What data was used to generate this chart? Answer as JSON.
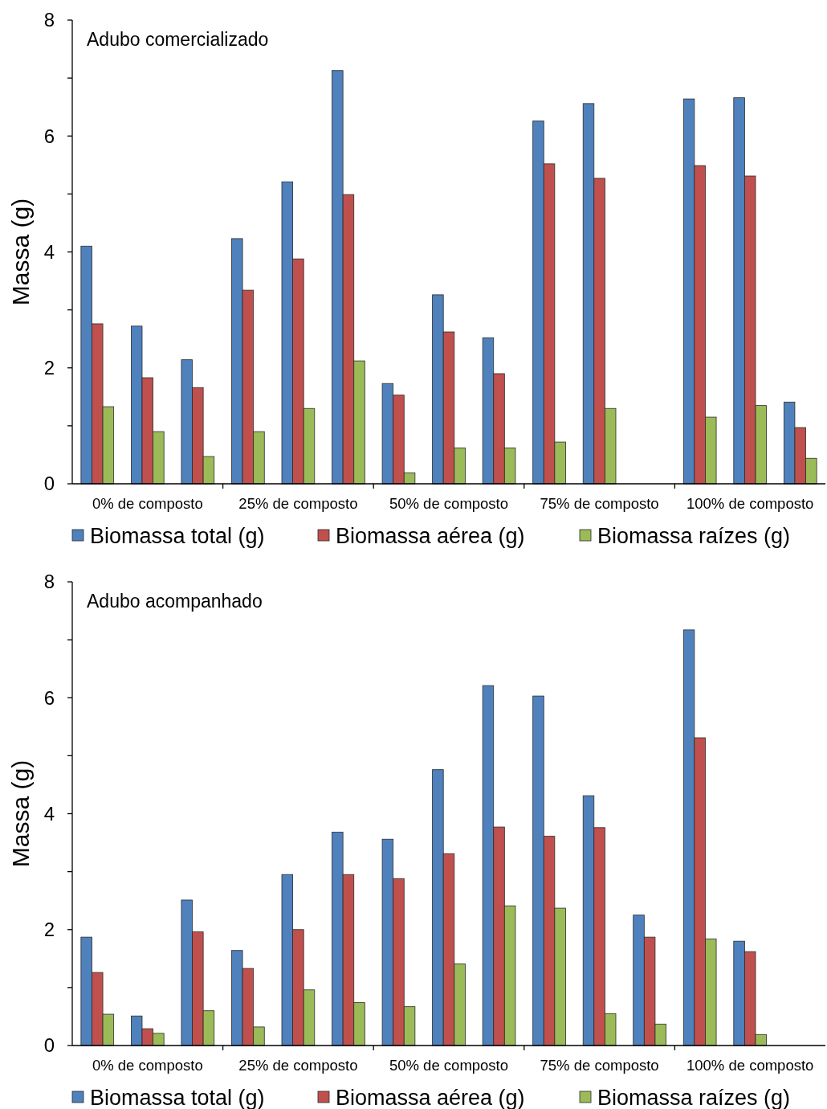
{
  "chart_data": [
    {
      "type": "bar",
      "title": "Adubo comercializado",
      "ylabel": "Massa (g)",
      "categories": [
        null,
        "0% de composto",
        null,
        null,
        "25% de composto",
        null,
        null,
        "50% de composto",
        null,
        null,
        "75% de composto",
        null,
        null,
        "100% de composto",
        null
      ],
      "ylim": [
        0,
        8
      ],
      "yticks": [
        0,
        {
          "value": 1,
          "label": null
        },
        2,
        {
          "value": 3,
          "label": null
        },
        4,
        {
          "value": 5,
          "label": null
        },
        6,
        {
          "value": 7,
          "label": null
        },
        8
      ],
      "legend": "bottom",
      "grid": false,
      "series": [
        {
          "name": "Biomassa total (g)",
          "color": "#4f81bd",
          "values": [
            4.1,
            2.72,
            2.14,
            4.23,
            5.21,
            7.13,
            1.73,
            3.26,
            2.52,
            6.26,
            6.56,
            null,
            6.64,
            6.66,
            1.41
          ]
        },
        {
          "name": "Biomassa aérea (g)",
          "color": "#c0504d",
          "values": [
            2.76,
            1.83,
            1.66,
            3.34,
            3.88,
            4.99,
            1.53,
            2.62,
            1.9,
            5.52,
            5.27,
            null,
            5.49,
            5.31,
            0.97
          ]
        },
        {
          "name": "Biomassa raízes (g)",
          "color": "#9bbb59",
          "values": [
            1.33,
            0.9,
            0.47,
            0.9,
            1.3,
            2.12,
            0.19,
            0.62,
            0.62,
            0.72,
            1.3,
            null,
            1.15,
            1.35,
            0.44
          ]
        }
      ]
    },
    {
      "type": "bar",
      "title": "Adubo acompanhado",
      "ylabel": "Massa (g)",
      "categories": [
        null,
        "0% de composto",
        null,
        null,
        "25% de composto",
        null,
        null,
        "50% de composto",
        null,
        null,
        "75% de composto",
        null,
        null,
        "100% de composto",
        null
      ],
      "ylim": [
        0,
        8
      ],
      "yticks": [
        0,
        {
          "value": 1,
          "label": null
        },
        2,
        {
          "value": 3,
          "label": null
        },
        4,
        {
          "value": 5,
          "label": null
        },
        6,
        {
          "value": 7,
          "label": null
        },
        8
      ],
      "legend": "bottom",
      "grid": false,
      "series": [
        {
          "name": "Biomassa total (g)",
          "color": "#4f81bd",
          "values": [
            1.87,
            0.51,
            2.51,
            1.64,
            2.95,
            3.68,
            3.56,
            4.76,
            6.21,
            6.03,
            4.31,
            2.25,
            7.17,
            1.8,
            null
          ]
        },
        {
          "name": "Biomassa aérea (g)",
          "color": "#c0504d",
          "values": [
            1.26,
            0.29,
            1.96,
            1.33,
            2.0,
            2.95,
            2.88,
            3.31,
            3.77,
            3.61,
            3.76,
            1.87,
            5.31,
            1.62,
            null
          ]
        },
        {
          "name": "Biomassa raízes (g)",
          "color": "#9bbb59",
          "values": [
            0.54,
            0.21,
            0.6,
            0.32,
            0.96,
            0.74,
            0.67,
            1.41,
            2.41,
            2.37,
            0.55,
            0.37,
            1.84,
            0.19,
            null
          ]
        }
      ]
    }
  ]
}
